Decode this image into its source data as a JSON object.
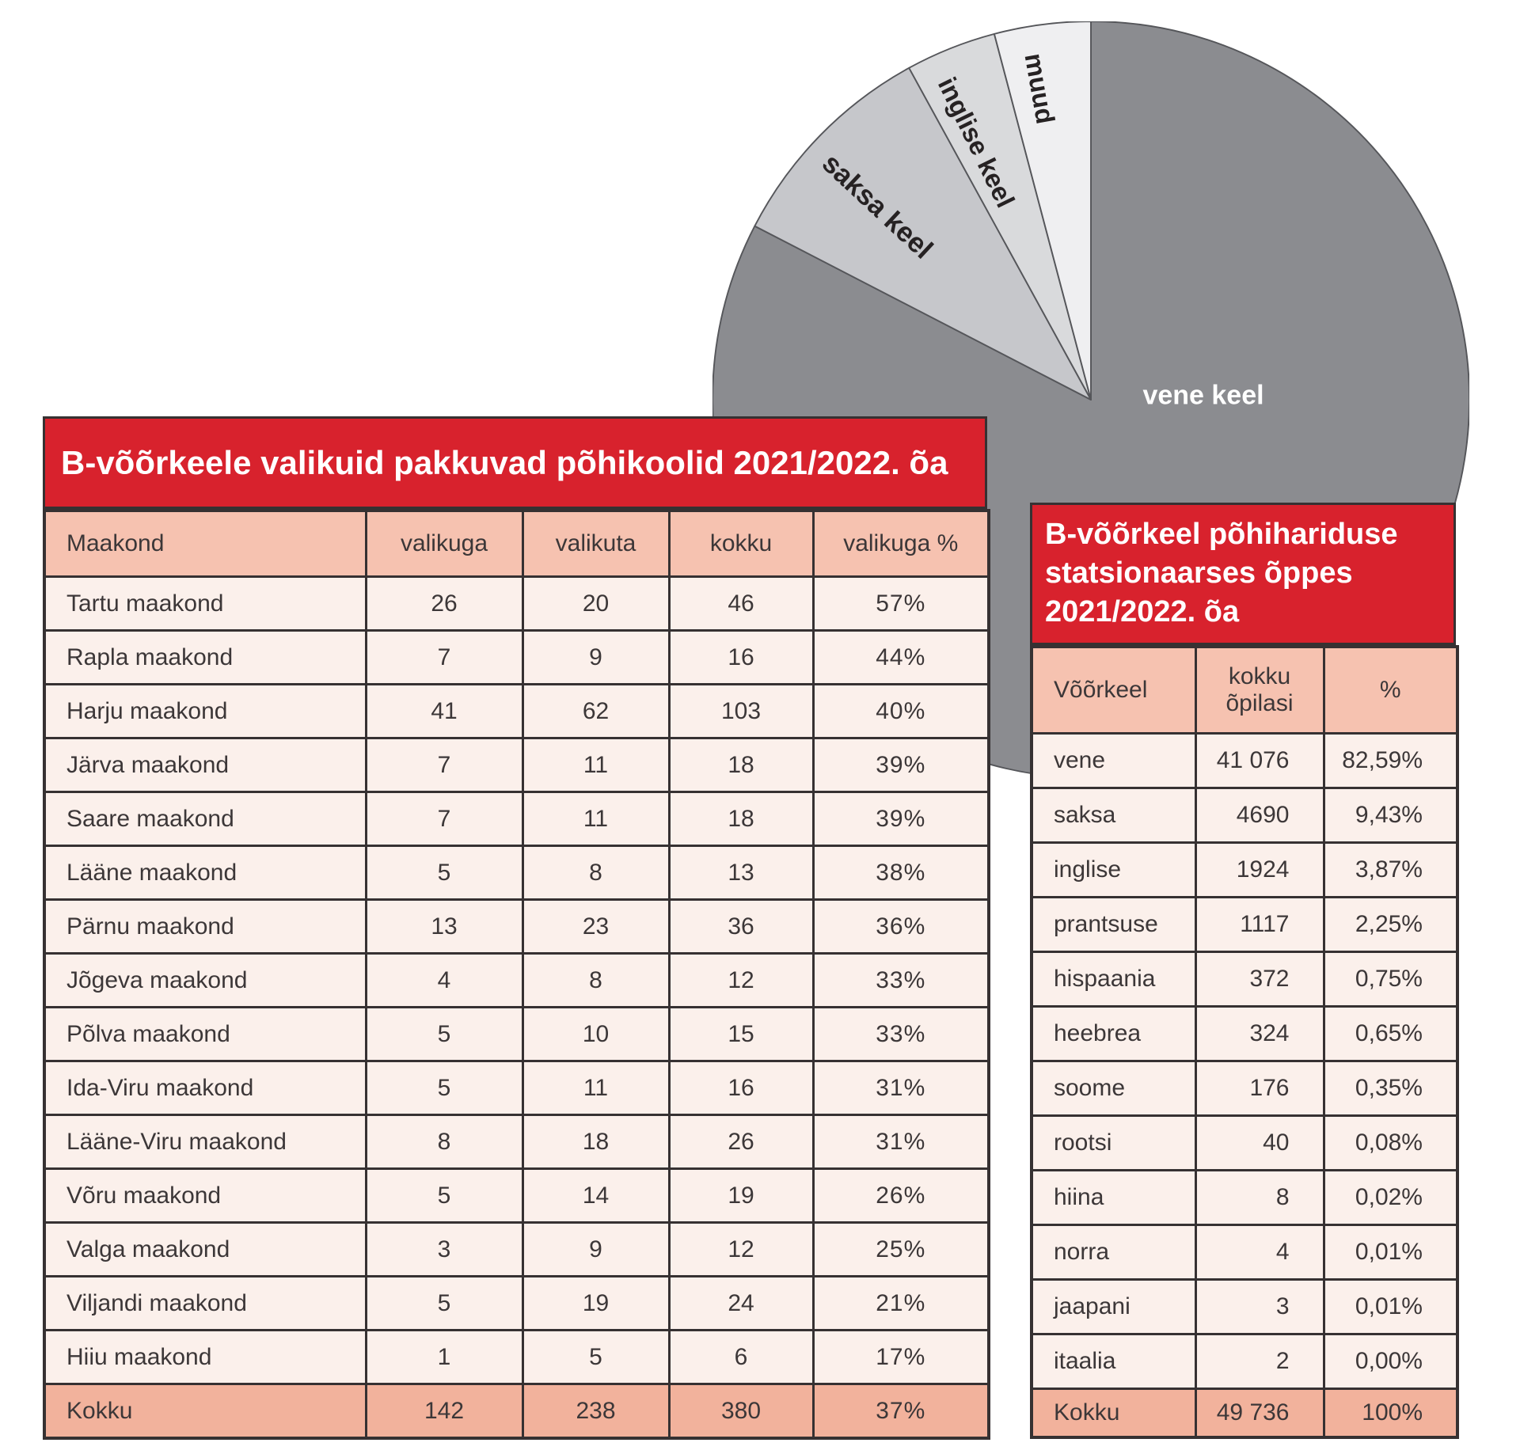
{
  "pie": {
    "stroke_color": "#55565a",
    "slices": [
      {
        "label": "vene keel",
        "value_pct": 82.59,
        "color": "#8b8c90"
      },
      {
        "label": "saksa keel",
        "value_pct": 9.43,
        "color": "#c6c7cb"
      },
      {
        "label": "inglise keel",
        "value_pct": 3.87,
        "color": "#d9dadc"
      },
      {
        "label": "muud",
        "value_pct": 4.11,
        "color": "#efeff1"
      }
    ]
  },
  "left_table": {
    "title": "B-võõrkeele valikuid pakkuvad põhikoolid 2021/2022. õa",
    "accent_color": "#d8222d",
    "headers": [
      "Maakond",
      "valikuga",
      "valikuta",
      "kokku",
      "valikuga %"
    ],
    "rows": [
      {
        "maakond": "Tartu maakond",
        "valikuga": "26",
        "valikuta": "20",
        "kokku": "46",
        "valikuga_pct": "57%"
      },
      {
        "maakond": "Rapla maakond",
        "valikuga": "7",
        "valikuta": "9",
        "kokku": "16",
        "valikuga_pct": "44%"
      },
      {
        "maakond": "Harju maakond",
        "valikuga": "41",
        "valikuta": "62",
        "kokku": "103",
        "valikuga_pct": "40%"
      },
      {
        "maakond": "Järva maakond",
        "valikuga": "7",
        "valikuta": "11",
        "kokku": "18",
        "valikuga_pct": "39%"
      },
      {
        "maakond": "Saare maakond",
        "valikuga": "7",
        "valikuta": "11",
        "kokku": "18",
        "valikuga_pct": "39%"
      },
      {
        "maakond": "Lääne maakond",
        "valikuga": "5",
        "valikuta": "8",
        "kokku": "13",
        "valikuga_pct": "38%"
      },
      {
        "maakond": "Pärnu maakond",
        "valikuga": "13",
        "valikuta": "23",
        "kokku": "36",
        "valikuga_pct": "36%"
      },
      {
        "maakond": "Jõgeva maakond",
        "valikuga": "4",
        "valikuta": "8",
        "kokku": "12",
        "valikuga_pct": "33%"
      },
      {
        "maakond": "Põlva maakond",
        "valikuga": "5",
        "valikuta": "10",
        "kokku": "15",
        "valikuga_pct": "33%"
      },
      {
        "maakond": "Ida-Viru maakond",
        "valikuga": "5",
        "valikuta": "11",
        "kokku": "16",
        "valikuga_pct": "31%"
      },
      {
        "maakond": "Lääne-Viru maakond",
        "valikuga": "8",
        "valikuta": "18",
        "kokku": "26",
        "valikuga_pct": "31%"
      },
      {
        "maakond": "Võru maakond",
        "valikuga": "5",
        "valikuta": "14",
        "kokku": "19",
        "valikuga_pct": "26%"
      },
      {
        "maakond": "Valga maakond",
        "valikuga": "3",
        "valikuta": "9",
        "kokku": "12",
        "valikuga_pct": "25%"
      },
      {
        "maakond": "Viljandi maakond",
        "valikuga": "5",
        "valikuta": "19",
        "kokku": "24",
        "valikuga_pct": "21%"
      },
      {
        "maakond": "Hiiu maakond",
        "valikuga": "1",
        "valikuta": "5",
        "kokku": "6",
        "valikuga_pct": "17%"
      }
    ],
    "total_row": {
      "maakond": "Kokku",
      "valikuga": "142",
      "valikuta": "238",
      "kokku": "380",
      "valikuga_pct": "37%"
    }
  },
  "right_table": {
    "title_lines": [
      "B-võõrkeel põhihariduse",
      "statsionaarses õppes",
      "2021/2022. õa"
    ],
    "accent_color": "#d8222d",
    "headers": [
      "Võõrkeel",
      "kokku õpilasi",
      "%"
    ],
    "rows": [
      {
        "keel": "vene",
        "kokku": "41 076",
        "pct": "82,59%"
      },
      {
        "keel": "saksa",
        "kokku": "4690",
        "pct": "9,43%"
      },
      {
        "keel": "inglise",
        "kokku": "1924",
        "pct": "3,87%"
      },
      {
        "keel": "prantsuse",
        "kokku": "1117",
        "pct": "2,25%"
      },
      {
        "keel": "hispaania",
        "kokku": "372",
        "pct": "0,75%"
      },
      {
        "keel": "heebrea",
        "kokku": "324",
        "pct": "0,65%"
      },
      {
        "keel": "soome",
        "kokku": "176",
        "pct": "0,35%"
      },
      {
        "keel": "rootsi",
        "kokku": "40",
        "pct": "0,08%"
      },
      {
        "keel": "hiina",
        "kokku": "8",
        "pct": "0,02%"
      },
      {
        "keel": "norra",
        "kokku": "4",
        "pct": "0,01%"
      },
      {
        "keel": "jaapani",
        "kokku": "3",
        "pct": "0,01%"
      },
      {
        "keel": "itaalia",
        "kokku": "2",
        "pct": "0,00%"
      }
    ],
    "total_row": {
      "keel": "Kokku",
      "kokku": "49 736",
      "pct": "100%"
    }
  },
  "chart_data": [
    {
      "type": "pie",
      "labels": [
        "vene keel",
        "saksa keel",
        "inglise keel",
        "muud"
      ],
      "values": [
        82.59,
        9.43,
        3.87,
        4.11
      ],
      "colors": [
        "#8b8c90",
        "#c6c7cb",
        "#d9dadc",
        "#efeff1"
      ],
      "legend_position": "labels-on-slices",
      "start_angle_deg": 0,
      "direction": "clockwise"
    },
    {
      "type": "table",
      "title": "B-võõrkeele valikuid pakkuvad põhikoolid 2021/2022. õa",
      "columns": [
        "Maakond",
        "valikuga",
        "valikuta",
        "kokku",
        "valikuga %"
      ],
      "rows": [
        [
          "Tartu maakond",
          26,
          20,
          46,
          "57%"
        ],
        [
          "Rapla maakond",
          7,
          9,
          16,
          "44%"
        ],
        [
          "Harju maakond",
          41,
          62,
          103,
          "40%"
        ],
        [
          "Järva maakond",
          7,
          11,
          18,
          "39%"
        ],
        [
          "Saare maakond",
          7,
          11,
          18,
          "39%"
        ],
        [
          "Lääne maakond",
          5,
          8,
          13,
          "38%"
        ],
        [
          "Pärnu maakond",
          13,
          23,
          36,
          "36%"
        ],
        [
          "Jõgeva maakond",
          4,
          8,
          12,
          "33%"
        ],
        [
          "Põlva maakond",
          5,
          10,
          15,
          "33%"
        ],
        [
          "Ida-Viru maakond",
          5,
          11,
          16,
          "31%"
        ],
        [
          "Lääne-Viru maakond",
          8,
          18,
          26,
          "31%"
        ],
        [
          "Võru maakond",
          5,
          14,
          19,
          "26%"
        ],
        [
          "Valga maakond",
          3,
          9,
          12,
          "25%"
        ],
        [
          "Viljandi maakond",
          5,
          19,
          24,
          "21%"
        ],
        [
          "Hiiu maakond",
          1,
          5,
          6,
          "17%"
        ],
        [
          "Kokku",
          142,
          238,
          380,
          "37%"
        ]
      ]
    },
    {
      "type": "table",
      "title": "B-võõrkeel põhihariduse statsionaarses õppes 2021/2022. õa",
      "columns": [
        "Võõrkeel",
        "kokku õpilasi",
        "%"
      ],
      "rows": [
        [
          "vene",
          "41 076",
          "82,59%"
        ],
        [
          "saksa",
          "4690",
          "9,43%"
        ],
        [
          "inglise",
          "1924",
          "3,87%"
        ],
        [
          "prantsuse",
          "1117",
          "2,25%"
        ],
        [
          "hispaania",
          "372",
          "0,75%"
        ],
        [
          "heebrea",
          "324",
          "0,65%"
        ],
        [
          "soome",
          "176",
          "0,35%"
        ],
        [
          "rootsi",
          "40",
          "0,08%"
        ],
        [
          "hiina",
          "8",
          "0,02%"
        ],
        [
          "norra",
          "4",
          "0,01%"
        ],
        [
          "jaapani",
          "3",
          "0,01%"
        ],
        [
          "itaalia",
          "2",
          "0,00%"
        ],
        [
          "Kokku",
          "49 736",
          "100%"
        ]
      ]
    }
  ]
}
